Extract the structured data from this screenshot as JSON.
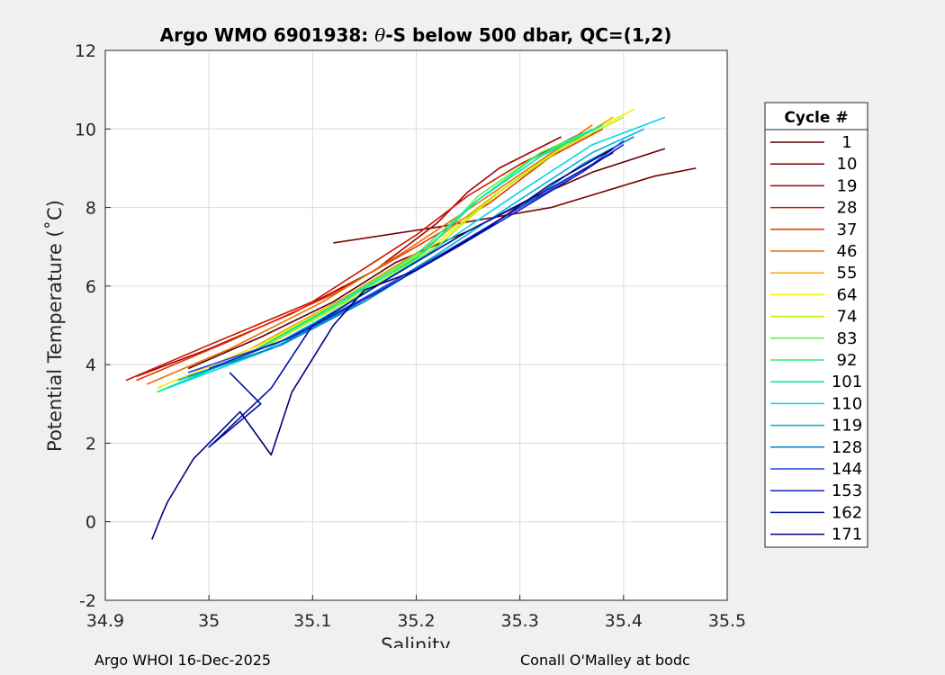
{
  "chart_data": {
    "type": "line",
    "title_main": "Argo WMO 6901938: ",
    "title_theta": "θ",
    "title_rest": "-S below 500 dbar,  QC=(1,2)",
    "xlabel": "Salinity",
    "ylabel": "Potential Temperature (˚C)",
    "xlim": [
      34.9,
      35.5
    ],
    "ylim": [
      -2,
      12
    ],
    "xticks": [
      "34.9",
      "35",
      "35.1",
      "35.2",
      "35.3",
      "35.4",
      "35.5"
    ],
    "yticks": [
      "-2",
      "0",
      "2",
      "4",
      "6",
      "8",
      "10",
      "12"
    ],
    "grid": true,
    "legend": {
      "title": "Cycle #",
      "placement": "outside-right",
      "entries": [
        {
          "label": "1",
          "color": "#5a0000"
        },
        {
          "label": "10",
          "color": "#7a0000"
        },
        {
          "label": "19",
          "color": "#a00000"
        },
        {
          "label": "28",
          "color": "#cc1400"
        },
        {
          "label": "37",
          "color": "#e63300"
        },
        {
          "label": "46",
          "color": "#f06a00"
        },
        {
          "label": "55",
          "color": "#f0a800"
        },
        {
          "label": "64",
          "color": "#f0f000"
        },
        {
          "label": "74",
          "color": "#b4f000"
        },
        {
          "label": "83",
          "color": "#60f040"
        },
        {
          "label": "92",
          "color": "#30f080"
        },
        {
          "label": "101",
          "color": "#00e8b0"
        },
        {
          "label": "110",
          "color": "#00d8e8"
        },
        {
          "label": "119",
          "color": "#00b0d8"
        },
        {
          "label": "128",
          "color": "#0080c8"
        },
        {
          "label": "144",
          "color": "#2040e0"
        },
        {
          "label": "153",
          "color": "#1020c0"
        },
        {
          "label": "162",
          "color": "#0010a0"
        },
        {
          "label": "171",
          "color": "#000080"
        }
      ]
    },
    "series": [
      {
        "color": "#5a0000",
        "points": [
          [
            34.98,
            3.9
          ],
          [
            35.05,
            4.7
          ],
          [
            35.12,
            5.6
          ],
          [
            35.18,
            6.6
          ],
          [
            35.25,
            7.4
          ],
          [
            35.31,
            8.2
          ],
          [
            35.37,
            8.9
          ],
          [
            35.44,
            9.5
          ]
        ]
      },
      {
        "color": "#7a0000",
        "points": [
          [
            35.12,
            7.1
          ],
          [
            35.22,
            7.5
          ],
          [
            35.33,
            8.0
          ],
          [
            35.43,
            8.8
          ],
          [
            35.47,
            9.0
          ]
        ]
      },
      {
        "color": "#a00000",
        "points": [
          [
            34.93,
            3.7
          ],
          [
            35.0,
            4.4
          ],
          [
            35.08,
            5.3
          ],
          [
            35.16,
            6.4
          ],
          [
            35.22,
            7.6
          ],
          [
            35.25,
            8.4
          ],
          [
            35.28,
            9.0
          ],
          [
            35.34,
            9.8
          ]
        ]
      },
      {
        "color": "#cc1400",
        "points": [
          [
            34.92,
            3.6
          ],
          [
            35.0,
            4.5
          ],
          [
            35.1,
            5.6
          ],
          [
            35.2,
            7.3
          ],
          [
            35.25,
            8.3
          ],
          [
            35.3,
            9.1
          ],
          [
            35.36,
            9.9
          ]
        ]
      },
      {
        "color": "#e63300",
        "points": [
          [
            34.93,
            3.6
          ],
          [
            35.02,
            4.6
          ],
          [
            35.12,
            5.8
          ],
          [
            35.2,
            7.0
          ],
          [
            35.27,
            8.1
          ],
          [
            35.33,
            9.3
          ],
          [
            35.38,
            10.0
          ]
        ]
      },
      {
        "color": "#f06a00",
        "points": [
          [
            34.94,
            3.5
          ],
          [
            35.02,
            4.4
          ],
          [
            35.11,
            5.6
          ],
          [
            35.19,
            6.9
          ],
          [
            35.27,
            8.3
          ],
          [
            35.32,
            9.2
          ],
          [
            35.37,
            10.1
          ]
        ]
      },
      {
        "color": "#f0a800",
        "points": [
          [
            34.95,
            3.4
          ],
          [
            35.04,
            4.4
          ],
          [
            35.13,
            5.7
          ],
          [
            35.21,
            7.0
          ],
          [
            35.28,
            8.4
          ],
          [
            35.34,
            9.5
          ],
          [
            35.39,
            10.3
          ]
        ]
      },
      {
        "color": "#f0f000",
        "points": [
          [
            34.95,
            3.4
          ],
          [
            35.05,
            4.5
          ],
          [
            35.14,
            5.8
          ],
          [
            35.22,
            7.1
          ],
          [
            35.29,
            8.6
          ],
          [
            35.35,
            9.7
          ],
          [
            35.41,
            10.5
          ]
        ]
      },
      {
        "color": "#b4f000",
        "points": [
          [
            34.95,
            3.3
          ],
          [
            35.05,
            4.4
          ],
          [
            35.14,
            5.7
          ],
          [
            35.22,
            7.0
          ],
          [
            35.28,
            8.4
          ],
          [
            35.34,
            9.5
          ],
          [
            35.4,
            10.3
          ]
        ]
      },
      {
        "color": "#60f040",
        "points": [
          [
            34.95,
            3.3
          ],
          [
            35.04,
            4.3
          ],
          [
            35.13,
            5.6
          ],
          [
            35.21,
            6.9
          ],
          [
            35.26,
            8.3
          ],
          [
            35.32,
            9.4
          ],
          [
            35.38,
            10.1
          ]
        ]
      },
      {
        "color": "#30f080",
        "points": [
          [
            34.95,
            3.3
          ],
          [
            35.04,
            4.3
          ],
          [
            35.12,
            5.5
          ],
          [
            35.2,
            6.8
          ],
          [
            35.25,
            8.0
          ],
          [
            35.31,
            9.2
          ],
          [
            35.37,
            10.0
          ]
        ]
      },
      {
        "color": "#00e8b0",
        "points": [
          [
            34.95,
            3.3
          ],
          [
            35.04,
            4.3
          ],
          [
            35.12,
            5.5
          ],
          [
            35.2,
            6.7
          ],
          [
            35.26,
            8.2
          ],
          [
            35.32,
            9.3
          ],
          [
            35.38,
            10.1
          ]
        ]
      },
      {
        "color": "#00d8e8",
        "points": [
          [
            34.96,
            3.4
          ],
          [
            35.05,
            4.3
          ],
          [
            35.13,
            5.5
          ],
          [
            35.21,
            6.8
          ],
          [
            35.3,
            8.4
          ],
          [
            35.37,
            9.6
          ],
          [
            35.44,
            10.3
          ]
        ]
      },
      {
        "color": "#00b0d8",
        "points": [
          [
            34.97,
            3.6
          ],
          [
            35.06,
            4.4
          ],
          [
            35.14,
            5.5
          ],
          [
            35.22,
            6.8
          ],
          [
            35.3,
            8.2
          ],
          [
            35.37,
            9.4
          ],
          [
            35.42,
            10.0
          ]
        ]
      },
      {
        "color": "#0080c8",
        "points": [
          [
            34.98,
            3.7
          ],
          [
            35.07,
            4.5
          ],
          [
            35.15,
            5.6
          ],
          [
            35.23,
            6.9
          ],
          [
            35.3,
            8.0
          ],
          [
            35.36,
            9.1
          ],
          [
            35.41,
            9.8
          ]
        ]
      },
      {
        "color": "#2040e0",
        "points": [
          [
            34.98,
            3.8
          ],
          [
            35.07,
            4.6
          ],
          [
            35.15,
            5.7
          ],
          [
            35.23,
            6.9
          ],
          [
            35.3,
            8.0
          ],
          [
            35.36,
            8.9
          ],
          [
            35.4,
            9.7
          ]
        ]
      },
      {
        "color": "#1020c0",
        "points": [
          [
            35.0,
            3.9
          ],
          [
            35.08,
            4.7
          ],
          [
            35.16,
            5.8
          ],
          [
            35.24,
            7.0
          ],
          [
            35.31,
            8.1
          ],
          [
            35.36,
            8.9
          ],
          [
            35.4,
            9.6
          ]
        ]
      },
      {
        "color": "#0010a0",
        "points": [
          [
            35.02,
            3.8
          ],
          [
            35.05,
            3.0
          ],
          [
            35.0,
            1.9
          ],
          [
            35.06,
            3.4
          ],
          [
            35.1,
            5.0
          ],
          [
            35.18,
            6.3
          ],
          [
            35.25,
            7.4
          ],
          [
            35.33,
            8.5
          ],
          [
            35.39,
            9.4
          ]
        ]
      },
      {
        "color": "#000080",
        "points": [
          [
            34.945,
            -0.45
          ],
          [
            34.955,
            0.2
          ],
          [
            34.96,
            0.5
          ],
          [
            34.985,
            1.6
          ],
          [
            35.03,
            2.8
          ],
          [
            35.06,
            1.7
          ],
          [
            35.08,
            3.3
          ],
          [
            35.12,
            5.0
          ],
          [
            35.15,
            5.9
          ],
          [
            35.2,
            6.4
          ],
          [
            35.27,
            7.5
          ],
          [
            35.33,
            8.6
          ],
          [
            35.39,
            9.5
          ]
        ]
      }
    ]
  },
  "footer": {
    "left": "Argo WHOI 16-Dec-2025",
    "right": "Conall O'Malley at bodc"
  }
}
